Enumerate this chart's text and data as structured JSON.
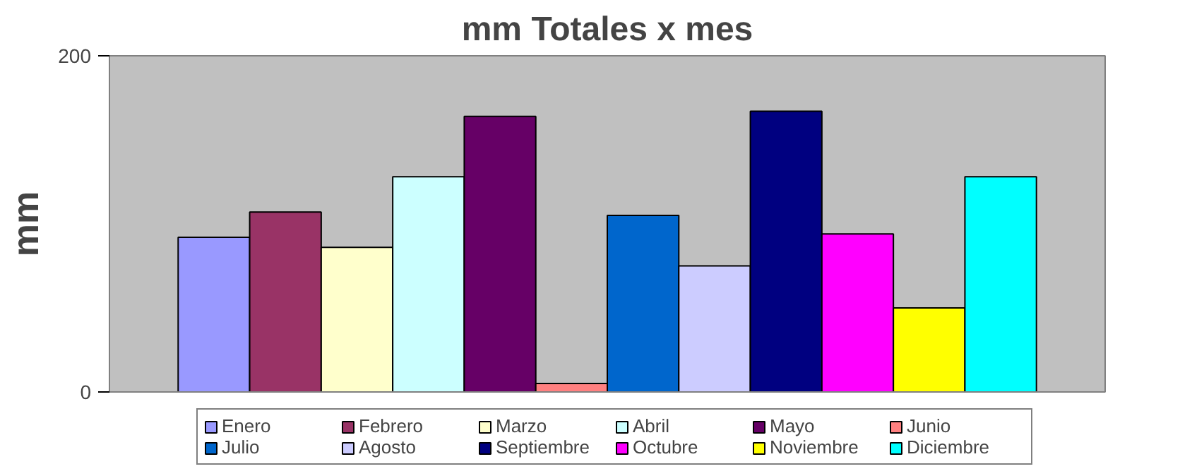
{
  "chart_data": {
    "type": "bar",
    "title": "mm Totales x mes",
    "ylabel": "mm",
    "categories": [
      null
    ],
    "ylim": [
      0,
      200
    ],
    "yticks": [
      0,
      200
    ],
    "grid": false,
    "legend": "bottom",
    "series": [
      {
        "name": "Enero",
        "color": "#9999ff",
        "values": [
          92
        ]
      },
      {
        "name": "Febrero",
        "color": "#993366",
        "values": [
          107
        ]
      },
      {
        "name": "Marzo",
        "color": "#ffffcc",
        "values": [
          86
        ]
      },
      {
        "name": "Abril",
        "color": "#ccffff",
        "values": [
          128
        ]
      },
      {
        "name": "Mayo",
        "color": "#660066",
        "values": [
          164
        ]
      },
      {
        "name": "Junio",
        "color": "#ff8080",
        "values": [
          5
        ]
      },
      {
        "name": "Julio",
        "color": "#0066cc",
        "values": [
          105
        ]
      },
      {
        "name": "Agosto",
        "color": "#ccccff",
        "values": [
          75
        ]
      },
      {
        "name": "Septiembre",
        "color": "#000080",
        "values": [
          167
        ]
      },
      {
        "name": "Octubre",
        "color": "#ff00ff",
        "values": [
          94
        ]
      },
      {
        "name": "Noviembre",
        "color": "#ffff00",
        "values": [
          50
        ]
      },
      {
        "name": "Diciembre",
        "color": "#00ffff",
        "values": [
          128
        ]
      }
    ]
  }
}
